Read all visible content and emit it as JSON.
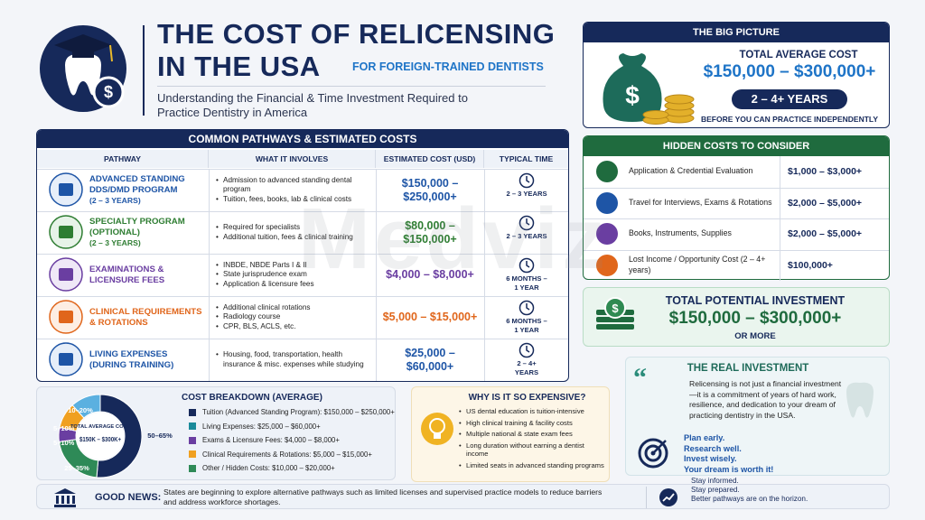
{
  "header": {
    "title_line1": "THE COST OF RELICENSING",
    "title_line2": "IN THE USA",
    "tag": "FOR FOREIGN-TRAINED DENTISTS",
    "subtitle": "Understanding the Financial & Time Investment Required to Practice Dentistry in America"
  },
  "big_picture": {
    "heading": "THE BIG PICTURE",
    "label": "TOTAL AVERAGE COST",
    "cost": "$150,000 – $300,000+",
    "years": "2 – 4+ YEARS",
    "note": "BEFORE YOU CAN PRACTICE INDEPENDENTLY"
  },
  "pathways": {
    "heading": "COMMON PATHWAYS & ESTIMATED COSTS",
    "columns": [
      "PATHWAY",
      "WHAT IT INVOLVES",
      "ESTIMATED COST (USD)",
      "TYPICAL TIME"
    ],
    "rows": [
      {
        "name": "ADVANCED STANDING DDS/DMD PROGRAM",
        "sub": "(2 – 3 YEARS)",
        "bullets": [
          "Admission to advanced standing dental program",
          "Tuition, fees, books, lab & clinical costs"
        ],
        "cost": "$150,000 – $250,000+",
        "time": "2 – 3 YEARS"
      },
      {
        "name": "SPECIALTY PROGRAM (OPTIONAL)",
        "sub": "(2 – 3 YEARS)",
        "bullets": [
          "Required for specialists",
          "Additional tuition, fees & clinical training"
        ],
        "cost": "$80,000 – $150,000+",
        "time": "2 – 3 YEARS"
      },
      {
        "name": "EXAMINATIONS & LICENSURE FEES",
        "bullets": [
          "INBDE, NBDE Parts I & II",
          "State jurisprudence exam",
          "Application & licensure fees"
        ],
        "cost": "$4,000 – $8,000+",
        "time": "6 MONTHS – 1 YEAR"
      },
      {
        "name": "CLINICAL REQUIREMENTS & ROTATIONS",
        "bullets": [
          "Additional clinical rotations",
          "Radiology course",
          "CPR, BLS, ACLS, etc."
        ],
        "cost": "$5,000 – $15,000+",
        "time": "6 MONTHS – 1 YEAR"
      },
      {
        "name": "LIVING EXPENSES (DURING TRAINING)",
        "bullets": [
          "Housing, food, transportation, health insurance & misc. expenses while studying"
        ],
        "cost": "$25,000 – $60,000+",
        "time": "2 – 4+ YEARS"
      }
    ]
  },
  "hidden_costs": {
    "heading": "HIDDEN COSTS TO CONSIDER",
    "items": [
      {
        "label": "Application & Credential Evaluation",
        "cost": "$1,000 – $3,000+"
      },
      {
        "label": "Travel for Interviews, Exams & Rotations",
        "cost": "$2,000 – $5,000+"
      },
      {
        "label": "Books, Instruments, Supplies",
        "cost": "$2,000 – $5,000+"
      },
      {
        "label": "Lost Income / Opportunity Cost (2 – 4+ years)",
        "cost": "$100,000+"
      }
    ]
  },
  "total": {
    "heading": "TOTAL POTENTIAL INVESTMENT",
    "amount": "$150,000 – $300,000+",
    "note": "OR MORE"
  },
  "real_investment": {
    "heading": "THE REAL INVESTMENT",
    "quote": "Relicensing is not just a financial investment—it is a commitment of years of hard work, resilience, and dedication to your dream of practicing dentistry in the USA.",
    "advice": [
      "Plan early.",
      "Research well.",
      "Invest wisely.",
      "Your dream is worth it!"
    ]
  },
  "breakdown": {
    "heading": "COST BREAKDOWN (AVERAGE)",
    "center_label": "TOTAL AVERAGE COST",
    "center_value": "$150K – $300K+",
    "slice_labels": [
      "50–65%",
      "25–35%",
      "5–10%",
      "5–10%",
      "10–20%"
    ],
    "legend": [
      "Tuition (Advanced Standing Program): $150,000 – $250,000+",
      "Living Expenses: $25,000 – $60,000+",
      "Exams & Licensure Fees: $4,000 – $8,000+",
      "Clinical Requirements & Rotations: $5,000 – $15,000+",
      "Other / Hidden Costs: $10,000 – $20,000+"
    ]
  },
  "why": {
    "heading": "WHY IS IT SO EXPENSIVE?",
    "items": [
      "US dental education is tuition-intensive",
      "High clinical training & facility costs",
      "Multiple national & state exam fees",
      "Long duration without earning a dentist income",
      "Limited seats in advanced standing programs"
    ]
  },
  "good_news": {
    "label": "GOOD NEWS:",
    "text": "States are beginning to explore alternative pathways such as limited licenses and supervised practice models to reduce barriers and address workforce shortages."
  },
  "footer": {
    "lines": [
      "Stay informed.",
      "Stay prepared.",
      "Better pathways are on the horizon."
    ]
  },
  "watermark": "Medviz"
}
